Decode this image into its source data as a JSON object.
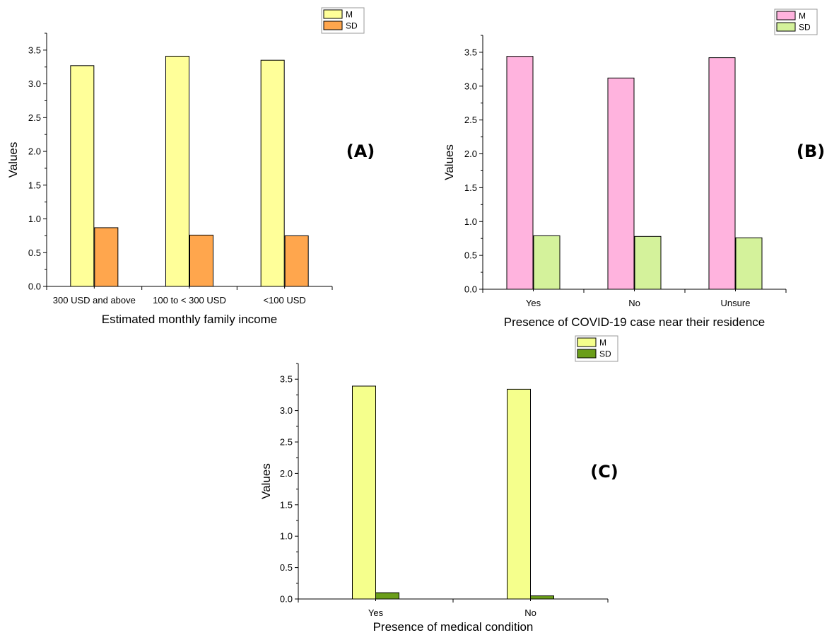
{
  "chart_data": [
    {
      "type": "bar",
      "panel_label": "(A)",
      "categories": [
        "300 USD and above",
        "100 to < 300 USD",
        "<100 USD"
      ],
      "series": [
        {
          "name": "M",
          "values": [
            3.27,
            3.41,
            3.35
          ],
          "color": "#ffff99"
        },
        {
          "name": "SD",
          "values": [
            0.87,
            0.76,
            0.75
          ],
          "color": "#ffa64d"
        }
      ],
      "xlabel": "Estimated monthly family income",
      "ylabel": "Values",
      "ylim": [
        0,
        3.75
      ],
      "yticks": [
        "0.0",
        "0.5",
        "1.0",
        "1.5",
        "2.0",
        "2.5",
        "3.0",
        "3.5"
      ],
      "legend_position": "top-right",
      "grid": false
    },
    {
      "type": "bar",
      "panel_label": "(B)",
      "categories": [
        "Yes",
        "No",
        "Unsure"
      ],
      "series": [
        {
          "name": "M",
          "values": [
            3.44,
            3.12,
            3.42
          ],
          "color": "#ffb3de"
        },
        {
          "name": "SD",
          "values": [
            0.79,
            0.78,
            0.76
          ],
          "color": "#d4f29b"
        }
      ],
      "xlabel": "Presence of COVID-19 case near their residence",
      "ylabel": "Values",
      "ylim": [
        0,
        3.75
      ],
      "yticks": [
        "0.0",
        "0.5",
        "1.0",
        "1.5",
        "2.0",
        "2.5",
        "3.0",
        "3.5"
      ],
      "legend_position": "top-right",
      "grid": false
    },
    {
      "type": "bar",
      "panel_label": "(C)",
      "categories": [
        "Yes",
        "No"
      ],
      "series": [
        {
          "name": "M",
          "values": [
            3.39,
            3.34
          ],
          "color": "#f5ff8c"
        },
        {
          "name": "SD",
          "values": [
            0.1,
            0.05
          ],
          "color": "#6b9e1a"
        }
      ],
      "xlabel": "Presence of medical condition",
      "ylabel": "Values",
      "ylim": [
        0,
        3.75
      ],
      "yticks": [
        "0.0",
        "0.5",
        "1.0",
        "1.5",
        "2.0",
        "2.5",
        "3.0",
        "3.5"
      ],
      "legend_position": "top",
      "grid": false
    }
  ]
}
